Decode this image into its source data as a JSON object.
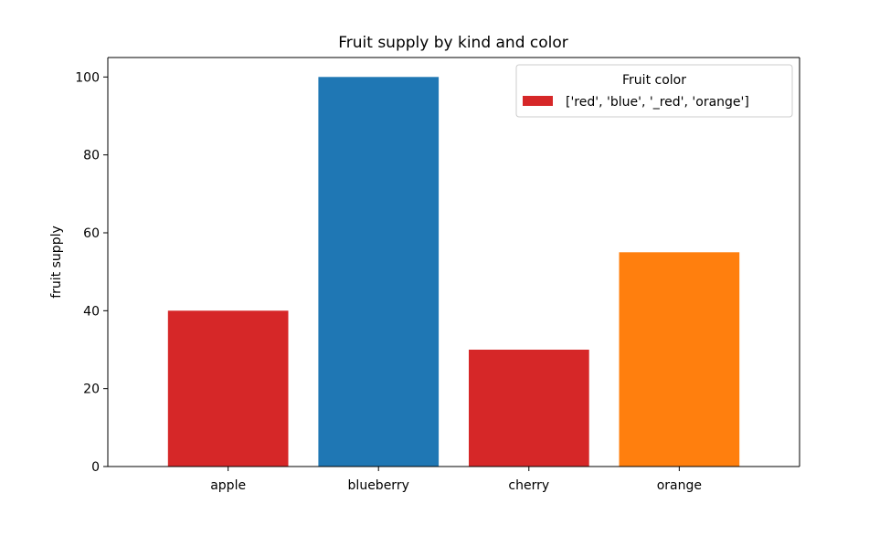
{
  "chart_data": {
    "type": "bar",
    "title": "Fruit supply by kind and color",
    "xlabel": "",
    "ylabel": "fruit supply",
    "categories": [
      "apple",
      "blueberry",
      "cherry",
      "orange"
    ],
    "values": [
      40,
      100,
      30,
      55
    ],
    "bar_colors": [
      "#d62728",
      "#1f77b4",
      "#d62728",
      "#ff7f0e"
    ],
    "ylim": [
      0,
      105
    ],
    "yticks": [
      0,
      20,
      40,
      60,
      80,
      100
    ],
    "grid": false,
    "legend": {
      "title": "Fruit color",
      "placement": "top-right",
      "entries": [
        {
          "label": "['red', 'blue', '_red', 'orange']",
          "color": "#d62728"
        }
      ]
    }
  }
}
